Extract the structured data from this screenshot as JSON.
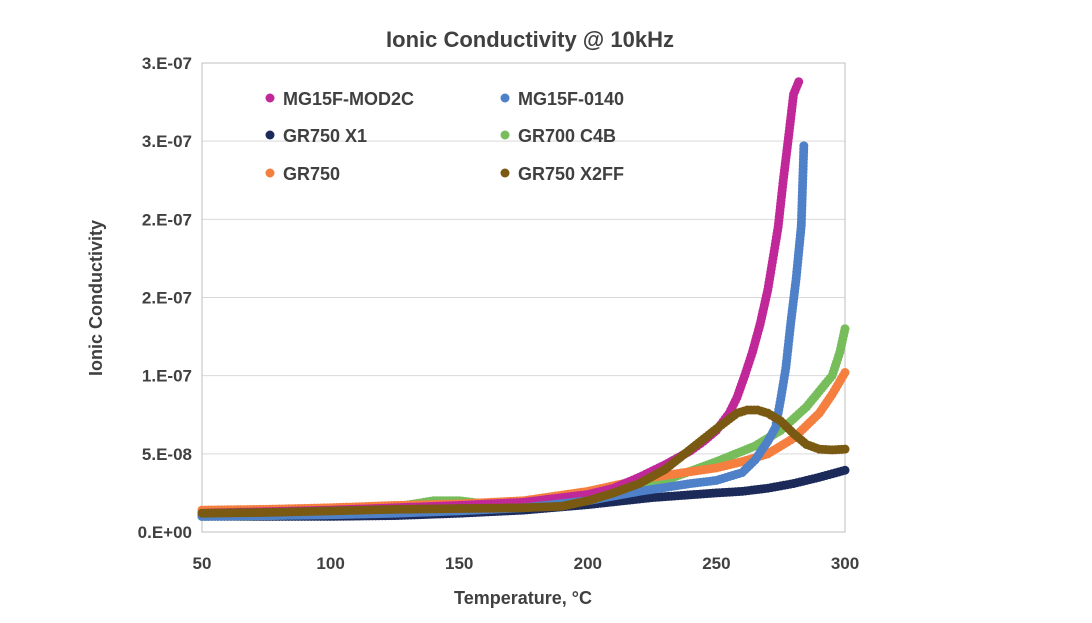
{
  "chart_data": {
    "type": "scatter",
    "title": "Ionic Conductivity @ 10kHz",
    "xlabel": "Temperature, °C",
    "ylabel": "Ionic Conductivity",
    "xlim": [
      50,
      300
    ],
    "ylim": [
      0,
      3e-07
    ],
    "x_ticks": [
      50,
      100,
      150,
      200,
      250,
      300
    ],
    "x_tick_labels": [
      "50",
      "100",
      "150",
      "200",
      "250",
      "300"
    ],
    "y_ticks": [
      0,
      5e-08,
      1e-07,
      1.5e-07,
      2e-07,
      2.5e-07,
      3e-07
    ],
    "y_tick_labels": [
      "0.E+00",
      "5.E-08",
      "1.E-07",
      "2.E-07",
      "2.E-07",
      "3.E-07",
      "3.E-07"
    ],
    "grid": "horizontal",
    "legend": "top-left, inside plot",
    "series": [
      {
        "name": "MG15F-MOD2C",
        "color": "#c0289a",
        "points": [
          [
            50,
            1.2e-08
          ],
          [
            75,
            1.3e-08
          ],
          [
            100,
            1.4e-08
          ],
          [
            125,
            1.55e-08
          ],
          [
            150,
            1.7e-08
          ],
          [
            175,
            1.9e-08
          ],
          [
            200,
            2.4e-08
          ],
          [
            210,
            2.8e-08
          ],
          [
            220,
            3.5e-08
          ],
          [
            230,
            4.3e-08
          ],
          [
            240,
            5.2e-08
          ],
          [
            245,
            5.8e-08
          ],
          [
            250,
            6.5e-08
          ],
          [
            255,
            7.6e-08
          ],
          [
            258,
            8.6e-08
          ],
          [
            261,
            1e-07
          ],
          [
            264,
            1.15e-07
          ],
          [
            267,
            1.33e-07
          ],
          [
            270,
            1.55e-07
          ],
          [
            272,
            1.75e-07
          ],
          [
            274,
            1.95e-07
          ],
          [
            276,
            2.25e-07
          ],
          [
            278,
            2.52e-07
          ],
          [
            280,
            2.8e-07
          ],
          [
            282,
            2.88e-07
          ]
        ]
      },
      {
        "name": "MG15F-0140",
        "color": "#4f81c9",
        "points": [
          [
            50,
            1e-08
          ],
          [
            75,
            1.05e-08
          ],
          [
            100,
            1.1e-08
          ],
          [
            125,
            1.2e-08
          ],
          [
            150,
            1.35e-08
          ],
          [
            175,
            1.55e-08
          ],
          [
            200,
            2e-08
          ],
          [
            220,
            2.6e-08
          ],
          [
            240,
            3.1e-08
          ],
          [
            250,
            3.3e-08
          ],
          [
            260,
            3.8e-08
          ],
          [
            265,
            4.6e-08
          ],
          [
            270,
            5.8e-08
          ],
          [
            273,
            6.7e-08
          ],
          [
            275,
            8.5e-08
          ],
          [
            277,
            1.05e-07
          ],
          [
            279,
            1.35e-07
          ],
          [
            281,
            1.62e-07
          ],
          [
            283,
            1.96e-07
          ],
          [
            284,
            2.47e-07
          ]
        ]
      },
      {
        "name": "GR750 X1",
        "color": "#1c2a5a",
        "points": [
          [
            50,
            1e-08
          ],
          [
            75,
            1e-08
          ],
          [
            100,
            1e-08
          ],
          [
            125,
            1.05e-08
          ],
          [
            150,
            1.2e-08
          ],
          [
            175,
            1.4e-08
          ],
          [
            200,
            1.75e-08
          ],
          [
            225,
            2.2e-08
          ],
          [
            250,
            2.5e-08
          ],
          [
            260,
            2.6e-08
          ],
          [
            270,
            2.8e-08
          ],
          [
            280,
            3.1e-08
          ],
          [
            290,
            3.5e-08
          ],
          [
            300,
            3.95e-08
          ]
        ]
      },
      {
        "name": "GR700 C4B",
        "color": "#77bd5b",
        "points": [
          [
            50,
            1e-08
          ],
          [
            75,
            1.05e-08
          ],
          [
            100,
            1.15e-08
          ],
          [
            125,
            1.6e-08
          ],
          [
            140,
            2e-08
          ],
          [
            150,
            2e-08
          ],
          [
            160,
            1.8e-08
          ],
          [
            175,
            1.85e-08
          ],
          [
            200,
            2.3e-08
          ],
          [
            225,
            3e-08
          ],
          [
            250,
            4.5e-08
          ],
          [
            265,
            5.5e-08
          ],
          [
            275,
            6.5e-08
          ],
          [
            285,
            8e-08
          ],
          [
            290,
            9e-08
          ],
          [
            295,
            1e-07
          ],
          [
            298,
            1.15e-07
          ],
          [
            300,
            1.3e-07
          ]
        ]
      },
      {
        "name": "GR750",
        "color": "#f47f3f",
        "points": [
          [
            50,
            1.4e-08
          ],
          [
            75,
            1.45e-08
          ],
          [
            100,
            1.55e-08
          ],
          [
            125,
            1.7e-08
          ],
          [
            150,
            1.8e-08
          ],
          [
            175,
            2e-08
          ],
          [
            200,
            2.6e-08
          ],
          [
            225,
            3.5e-08
          ],
          [
            250,
            4.1e-08
          ],
          [
            260,
            4.5e-08
          ],
          [
            270,
            5e-08
          ],
          [
            280,
            6e-08
          ],
          [
            290,
            7.6e-08
          ],
          [
            295,
            8.8e-08
          ],
          [
            300,
            1.02e-07
          ]
        ]
      },
      {
        "name": "GR750 X2FF",
        "color": "#7a5a12",
        "points": [
          [
            50,
            1.2e-08
          ],
          [
            75,
            1.25e-08
          ],
          [
            100,
            1.35e-08
          ],
          [
            125,
            1.45e-08
          ],
          [
            150,
            1.5e-08
          ],
          [
            175,
            1.55e-08
          ],
          [
            190,
            1.65e-08
          ],
          [
            200,
            2e-08
          ],
          [
            210,
            2.5e-08
          ],
          [
            220,
            3.1e-08
          ],
          [
            230,
            4e-08
          ],
          [
            240,
            5.3e-08
          ],
          [
            250,
            6.6e-08
          ],
          [
            258,
            7.6e-08
          ],
          [
            262,
            7.8e-08
          ],
          [
            266,
            7.8e-08
          ],
          [
            270,
            7.6e-08
          ],
          [
            275,
            7.1e-08
          ],
          [
            280,
            6.3e-08
          ],
          [
            285,
            5.6e-08
          ],
          [
            290,
            5.3e-08
          ],
          [
            295,
            5.25e-08
          ],
          [
            300,
            5.3e-08
          ]
        ]
      }
    ]
  }
}
